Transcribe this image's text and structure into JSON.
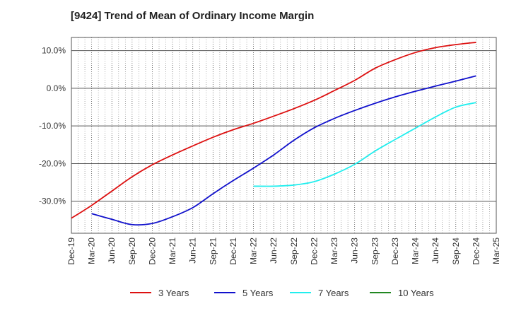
{
  "chart_data": {
    "type": "line",
    "title": "[9424]  Trend of Mean of Ordinary Income Margin",
    "xlabel": "",
    "ylabel": "",
    "x_categories": [
      "Dec-19",
      "Mar-20",
      "Jun-20",
      "Sep-20",
      "Dec-20",
      "Mar-21",
      "Jun-21",
      "Sep-21",
      "Dec-21",
      "Mar-22",
      "Jun-22",
      "Sep-22",
      "Dec-22",
      "Mar-23",
      "Jun-23",
      "Sep-23",
      "Dec-23",
      "Mar-24",
      "Jun-24",
      "Sep-24",
      "Dec-24",
      "Mar-25"
    ],
    "y_ticks": [
      10,
      0,
      -10,
      -20,
      -30
    ],
    "y_tick_labels": [
      "10.0%",
      "0.0%",
      "-10.0%",
      "-20.0%",
      "-30.0%"
    ],
    "ylim": [
      -38.5,
      13.5
    ],
    "grid": true,
    "legend_position": "bottom",
    "series": [
      {
        "name": "3 Years",
        "color": "#dd1111",
        "points": [
          {
            "x": "Dec-19",
            "y": -34.5
          },
          {
            "x": "Mar-20",
            "y": -31.1
          },
          {
            "x": "Jun-20",
            "y": -27.3
          },
          {
            "x": "Sep-20",
            "y": -23.5
          },
          {
            "x": "Dec-20",
            "y": -20.3
          },
          {
            "x": "Mar-21",
            "y": -17.7
          },
          {
            "x": "Jun-21",
            "y": -15.3
          },
          {
            "x": "Sep-21",
            "y": -13.0
          },
          {
            "x": "Dec-21",
            "y": -11.0
          },
          {
            "x": "Mar-22",
            "y": -9.3
          },
          {
            "x": "Jun-22",
            "y": -7.4
          },
          {
            "x": "Sep-22",
            "y": -5.4
          },
          {
            "x": "Dec-22",
            "y": -3.2
          },
          {
            "x": "Mar-23",
            "y": -0.6
          },
          {
            "x": "Jun-23",
            "y": 2.1
          },
          {
            "x": "Sep-23",
            "y": 5.3
          },
          {
            "x": "Dec-23",
            "y": 7.6
          },
          {
            "x": "Mar-24",
            "y": 9.5
          },
          {
            "x": "Jun-24",
            "y": 10.8
          },
          {
            "x": "Sep-24",
            "y": 11.6
          },
          {
            "x": "Dec-24",
            "y": 12.2
          }
        ]
      },
      {
        "name": "5 Years",
        "color": "#1111cc",
        "points": [
          {
            "x": "Mar-20",
            "y": -33.3
          },
          {
            "x": "Jun-20",
            "y": -34.8
          },
          {
            "x": "Sep-20",
            "y": -36.2
          },
          {
            "x": "Dec-20",
            "y": -35.9
          },
          {
            "x": "Mar-21",
            "y": -34.1
          },
          {
            "x": "Jun-21",
            "y": -31.7
          },
          {
            "x": "Sep-21",
            "y": -28.0
          },
          {
            "x": "Dec-21",
            "y": -24.5
          },
          {
            "x": "Mar-22",
            "y": -21.2
          },
          {
            "x": "Jun-22",
            "y": -17.7
          },
          {
            "x": "Sep-22",
            "y": -13.8
          },
          {
            "x": "Dec-22",
            "y": -10.5
          },
          {
            "x": "Mar-23",
            "y": -8.0
          },
          {
            "x": "Jun-23",
            "y": -5.9
          },
          {
            "x": "Sep-23",
            "y": -4.0
          },
          {
            "x": "Dec-23",
            "y": -2.3
          },
          {
            "x": "Mar-24",
            "y": -0.8
          },
          {
            "x": "Jun-24",
            "y": 0.6
          },
          {
            "x": "Sep-24",
            "y": 1.9
          },
          {
            "x": "Dec-24",
            "y": 3.3
          }
        ]
      },
      {
        "name": "7 Years",
        "color": "#22eeee",
        "points": [
          {
            "x": "Mar-22",
            "y": -26.0
          },
          {
            "x": "Jun-22",
            "y": -26.0
          },
          {
            "x": "Sep-22",
            "y": -25.7
          },
          {
            "x": "Dec-22",
            "y": -24.8
          },
          {
            "x": "Mar-23",
            "y": -22.8
          },
          {
            "x": "Jun-23",
            "y": -20.2
          },
          {
            "x": "Sep-23",
            "y": -16.7
          },
          {
            "x": "Dec-23",
            "y": -13.6
          },
          {
            "x": "Mar-24",
            "y": -10.6
          },
          {
            "x": "Jun-24",
            "y": -7.6
          },
          {
            "x": "Sep-24",
            "y": -5.0
          },
          {
            "x": "Dec-24",
            "y": -3.8
          }
        ]
      },
      {
        "name": "10 Years",
        "color": "#228822",
        "points": []
      }
    ]
  }
}
